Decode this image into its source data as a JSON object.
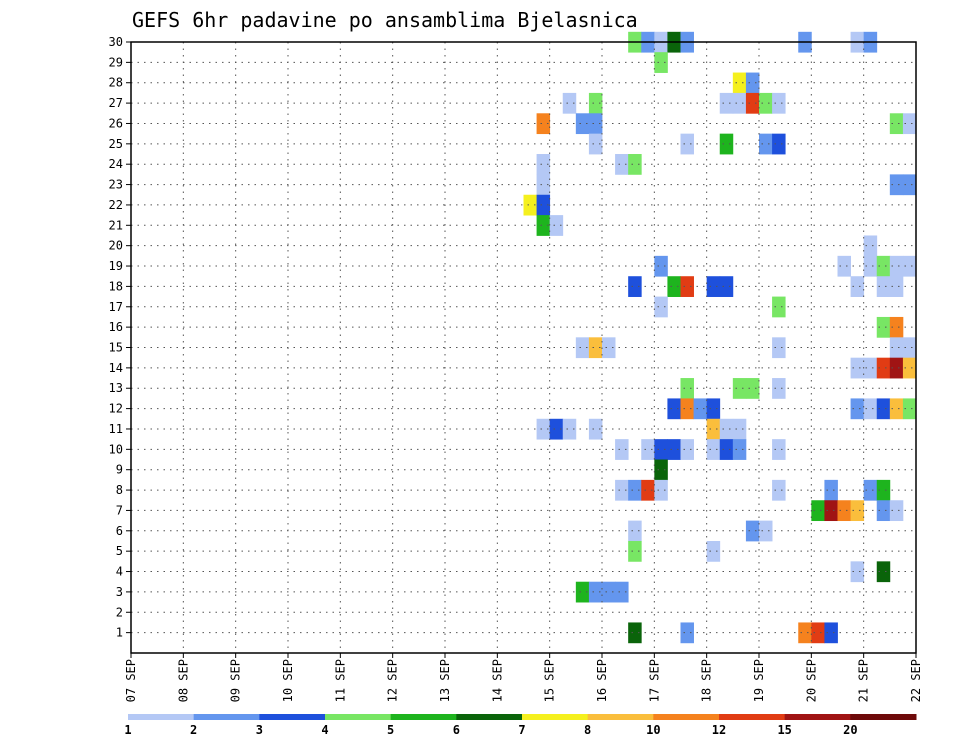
{
  "chart_data": {
    "type": "heatmap",
    "title": "GEFS 6hr padavine po ansamblima Bjelasnica",
    "xlabel": "",
    "ylabel": "",
    "x_tick_labels": [
      "07 SEP",
      "08 SEP",
      "09 SEP",
      "10 SEP",
      "11 SEP",
      "12 SEP",
      "13 SEP",
      "14 SEP",
      "15 SEP",
      "16 SEP",
      "17 SEP",
      "18 SEP",
      "19 SEP",
      "20 SEP",
      "21 SEP",
      "22 SEP"
    ],
    "xlim_days": [
      0,
      15
    ],
    "y_tick_labels": [
      "1",
      "2",
      "3",
      "4",
      "5",
      "6",
      "7",
      "8",
      "9",
      "10",
      "11",
      "12",
      "13",
      "14",
      "15",
      "16",
      "17",
      "18",
      "19",
      "20",
      "21",
      "22",
      "23",
      "24",
      "25",
      "26",
      "27",
      "28",
      "29",
      "30"
    ],
    "ylim": [
      0,
      30
    ],
    "grid": true,
    "colorbar": {
      "placement": "bottom",
      "bounds": [
        1,
        2,
        3,
        4,
        5,
        6,
        7,
        8,
        10,
        12,
        15,
        20
      ],
      "tick_labels": [
        "1",
        "2",
        "3",
        "4",
        "5",
        "6",
        "7",
        "8",
        "10",
        "12",
        "15",
        "20"
      ],
      "colors": [
        "#b4c8f5",
        "#6496ee",
        "#1e50dc",
        "#78e664",
        "#1eb41e",
        "#0a640a",
        "#f5f01e",
        "#fabe3c",
        "#f5821e",
        "#e13c14",
        "#a01414",
        "#6e0a0a"
      ]
    },
    "time_step_hours": 6,
    "cells_note_units": "x = days after 07 SEP 00z, y = ensemble member, c = color class index 0-11",
    "cells": [
      {
        "x": 9.625,
        "y": 30,
        "c": 3
      },
      {
        "x": 9.875,
        "y": 30,
        "c": 1
      },
      {
        "x": 10.125,
        "y": 30,
        "c": 0
      },
      {
        "x": 10.375,
        "y": 30,
        "c": 5
      },
      {
        "x": 10.625,
        "y": 30,
        "c": 1
      },
      {
        "x": 12.875,
        "y": 30,
        "c": 1
      },
      {
        "x": 13.875,
        "y": 30,
        "c": 0
      },
      {
        "x": 14.125,
        "y": 30,
        "c": 1
      },
      {
        "x": 10.125,
        "y": 29,
        "c": 3
      },
      {
        "x": 11.625,
        "y": 28,
        "c": 6
      },
      {
        "x": 11.875,
        "y": 28,
        "c": 1
      },
      {
        "x": 8.375,
        "y": 27,
        "c": 0
      },
      {
        "x": 8.875,
        "y": 27,
        "c": 3
      },
      {
        "x": 11.375,
        "y": 27,
        "c": 0
      },
      {
        "x": 11.625,
        "y": 27,
        "c": 0
      },
      {
        "x": 11.875,
        "y": 27,
        "c": 9
      },
      {
        "x": 12.125,
        "y": 27,
        "c": 3
      },
      {
        "x": 12.375,
        "y": 27,
        "c": 0
      },
      {
        "x": 7.875,
        "y": 26,
        "c": 8
      },
      {
        "x": 8.625,
        "y": 26,
        "c": 1
      },
      {
        "x": 8.875,
        "y": 26,
        "c": 1
      },
      {
        "x": 14.625,
        "y": 26,
        "c": 3
      },
      {
        "x": 14.875,
        "y": 26,
        "c": 0
      },
      {
        "x": 8.875,
        "y": 25,
        "c": 0
      },
      {
        "x": 10.625,
        "y": 25,
        "c": 0
      },
      {
        "x": 11.375,
        "y": 25,
        "c": 4
      },
      {
        "x": 12.125,
        "y": 25,
        "c": 1
      },
      {
        "x": 12.375,
        "y": 25,
        "c": 2
      },
      {
        "x": 7.875,
        "y": 24,
        "c": 0
      },
      {
        "x": 9.375,
        "y": 24,
        "c": 0
      },
      {
        "x": 9.625,
        "y": 24,
        "c": 3
      },
      {
        "x": 7.875,
        "y": 23,
        "c": 0
      },
      {
        "x": 14.625,
        "y": 23,
        "c": 1
      },
      {
        "x": 14.875,
        "y": 23,
        "c": 1
      },
      {
        "x": 7.625,
        "y": 22,
        "c": 6
      },
      {
        "x": 7.875,
        "y": 22,
        "c": 2
      },
      {
        "x": 7.875,
        "y": 21,
        "c": 4
      },
      {
        "x": 8.125,
        "y": 21,
        "c": 0
      },
      {
        "x": 14.125,
        "y": 20,
        "c": 0
      },
      {
        "x": 10.125,
        "y": 19,
        "c": 1
      },
      {
        "x": 13.625,
        "y": 19,
        "c": 0
      },
      {
        "x": 14.125,
        "y": 19,
        "c": 0
      },
      {
        "x": 14.375,
        "y": 19,
        "c": 3
      },
      {
        "x": 14.625,
        "y": 19,
        "c": 0
      },
      {
        "x": 14.875,
        "y": 19,
        "c": 0
      },
      {
        "x": 9.625,
        "y": 18,
        "c": 2
      },
      {
        "x": 10.375,
        "y": 18,
        "c": 4
      },
      {
        "x": 10.625,
        "y": 18,
        "c": 9
      },
      {
        "x": 11.125,
        "y": 18,
        "c": 2
      },
      {
        "x": 11.375,
        "y": 18,
        "c": 2
      },
      {
        "x": 13.875,
        "y": 18,
        "c": 0
      },
      {
        "x": 14.375,
        "y": 18,
        "c": 0
      },
      {
        "x": 14.625,
        "y": 18,
        "c": 0
      },
      {
        "x": 10.125,
        "y": 17,
        "c": 0
      },
      {
        "x": 12.375,
        "y": 17,
        "c": 3
      },
      {
        "x": 14.375,
        "y": 16,
        "c": 3
      },
      {
        "x": 14.625,
        "y": 16,
        "c": 8
      },
      {
        "x": 8.625,
        "y": 15,
        "c": 0
      },
      {
        "x": 8.875,
        "y": 15,
        "c": 7
      },
      {
        "x": 9.125,
        "y": 15,
        "c": 0
      },
      {
        "x": 12.375,
        "y": 15,
        "c": 0
      },
      {
        "x": 14.625,
        "y": 15,
        "c": 0
      },
      {
        "x": 14.875,
        "y": 15,
        "c": 0
      },
      {
        "x": 13.875,
        "y": 14,
        "c": 0
      },
      {
        "x": 14.125,
        "y": 14,
        "c": 0
      },
      {
        "x": 14.375,
        "y": 14,
        "c": 9
      },
      {
        "x": 14.625,
        "y": 14,
        "c": 10
      },
      {
        "x": 14.875,
        "y": 14,
        "c": 7
      },
      {
        "x": 10.625,
        "y": 13,
        "c": 3
      },
      {
        "x": 11.625,
        "y": 13,
        "c": 3
      },
      {
        "x": 11.875,
        "y": 13,
        "c": 3
      },
      {
        "x": 12.375,
        "y": 13,
        "c": 0
      },
      {
        "x": 10.375,
        "y": 12,
        "c": 2
      },
      {
        "x": 10.625,
        "y": 12,
        "c": 8
      },
      {
        "x": 10.875,
        "y": 12,
        "c": 1
      },
      {
        "x": 11.125,
        "y": 12,
        "c": 2
      },
      {
        "x": 13.875,
        "y": 12,
        "c": 1
      },
      {
        "x": 14.125,
        "y": 12,
        "c": 0
      },
      {
        "x": 14.375,
        "y": 12,
        "c": 2
      },
      {
        "x": 14.625,
        "y": 12,
        "c": 7
      },
      {
        "x": 14.875,
        "y": 12,
        "c": 3
      },
      {
        "x": 7.875,
        "y": 11,
        "c": 0
      },
      {
        "x": 8.125,
        "y": 11,
        "c": 2
      },
      {
        "x": 8.375,
        "y": 11,
        "c": 0
      },
      {
        "x": 8.875,
        "y": 11,
        "c": 0
      },
      {
        "x": 11.125,
        "y": 11,
        "c": 7
      },
      {
        "x": 11.375,
        "y": 11,
        "c": 0
      },
      {
        "x": 11.625,
        "y": 11,
        "c": 0
      },
      {
        "x": 9.375,
        "y": 10,
        "c": 0
      },
      {
        "x": 9.875,
        "y": 10,
        "c": 0
      },
      {
        "x": 10.125,
        "y": 10,
        "c": 2
      },
      {
        "x": 10.375,
        "y": 10,
        "c": 2
      },
      {
        "x": 10.625,
        "y": 10,
        "c": 0
      },
      {
        "x": 11.125,
        "y": 10,
        "c": 0
      },
      {
        "x": 11.375,
        "y": 10,
        "c": 2
      },
      {
        "x": 11.625,
        "y": 10,
        "c": 1
      },
      {
        "x": 12.375,
        "y": 10,
        "c": 0
      },
      {
        "x": 10.125,
        "y": 9,
        "c": 5
      },
      {
        "x": 9.375,
        "y": 8,
        "c": 0
      },
      {
        "x": 9.625,
        "y": 8,
        "c": 1
      },
      {
        "x": 9.875,
        "y": 8,
        "c": 9
      },
      {
        "x": 10.125,
        "y": 8,
        "c": 0
      },
      {
        "x": 12.375,
        "y": 8,
        "c": 0
      },
      {
        "x": 13.375,
        "y": 8,
        "c": 1
      },
      {
        "x": 14.125,
        "y": 8,
        "c": 1
      },
      {
        "x": 14.375,
        "y": 8,
        "c": 4
      },
      {
        "x": 13.125,
        "y": 7,
        "c": 4
      },
      {
        "x": 13.375,
        "y": 7,
        "c": 10
      },
      {
        "x": 13.625,
        "y": 7,
        "c": 8
      },
      {
        "x": 13.875,
        "y": 7,
        "c": 7
      },
      {
        "x": 14.375,
        "y": 7,
        "c": 1
      },
      {
        "x": 14.625,
        "y": 7,
        "c": 0
      },
      {
        "x": 9.625,
        "y": 6,
        "c": 0
      },
      {
        "x": 11.875,
        "y": 6,
        "c": 1
      },
      {
        "x": 12.125,
        "y": 6,
        "c": 0
      },
      {
        "x": 9.625,
        "y": 5,
        "c": 3
      },
      {
        "x": 11.125,
        "y": 5,
        "c": 0
      },
      {
        "x": 13.875,
        "y": 4,
        "c": 0
      },
      {
        "x": 14.375,
        "y": 4,
        "c": 5
      },
      {
        "x": 8.625,
        "y": 3,
        "c": 4
      },
      {
        "x": 8.875,
        "y": 3,
        "c": 1
      },
      {
        "x": 9.125,
        "y": 3,
        "c": 1
      },
      {
        "x": 9.375,
        "y": 3,
        "c": 1
      },
      {
        "x": 9.625,
        "y": 1,
        "c": 5
      },
      {
        "x": 10.625,
        "y": 1,
        "c": 1
      },
      {
        "x": 12.875,
        "y": 1,
        "c": 8
      },
      {
        "x": 13.125,
        "y": 1,
        "c": 9
      },
      {
        "x": 13.375,
        "y": 1,
        "c": 2
      }
    ]
  }
}
